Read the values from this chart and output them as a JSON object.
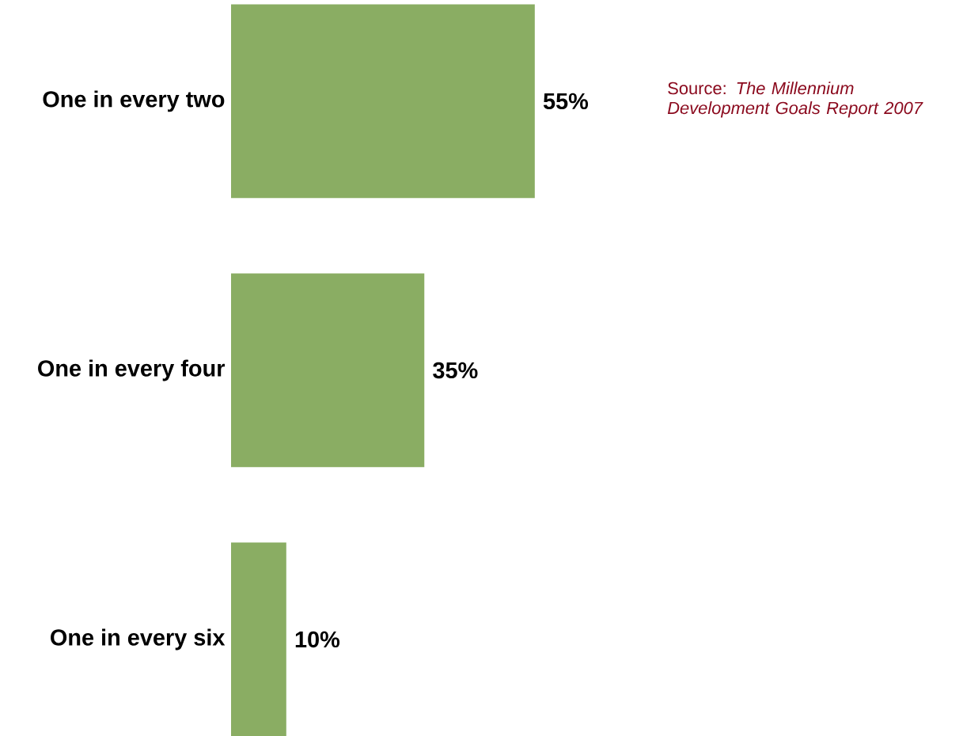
{
  "chart_data": {
    "type": "bar",
    "orientation": "horizontal",
    "categories": [
      "One in every two",
      "One in every four",
      "One in every six"
    ],
    "values": [
      55,
      35,
      10
    ],
    "value_labels": [
      "55%",
      "35%",
      "10%"
    ],
    "color": "#8aad63",
    "annotations": [
      "Source: *The Millennium Development Goals Report 2007*"
    ]
  }
}
